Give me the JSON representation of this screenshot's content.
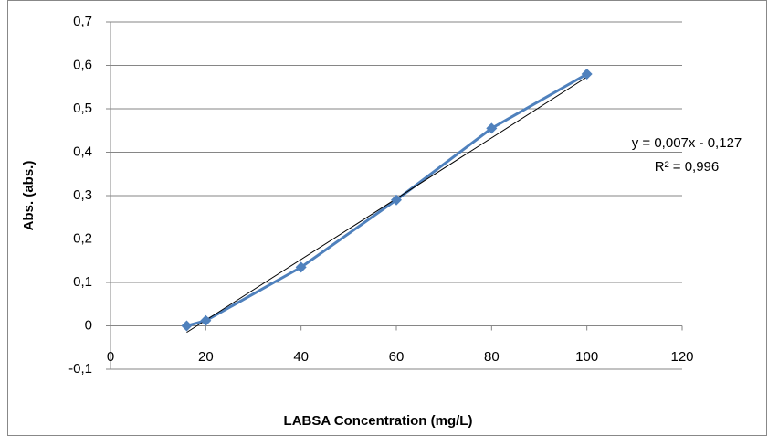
{
  "chart_data": {
    "type": "line",
    "x_label": "LABSA Concentration (mg/L)",
    "y_label": "Abs. (abs.)",
    "series": [
      {
        "color": "#4f81bd",
        "x": [
          16,
          20,
          40,
          60,
          80,
          100
        ],
        "values": [
          0,
          0.012,
          0.135,
          0.29,
          0.455,
          0.58
        ]
      }
    ],
    "trendline": {
      "slope": 0.007,
      "intercept": -0.127,
      "color": "#000000",
      "equation": "y = 0,007x - 0,127",
      "r_squared": "R² = 0,996"
    },
    "xlim": [
      0,
      120
    ],
    "xticks": [
      0,
      20,
      40,
      60,
      80,
      100,
      120
    ],
    "ylim": [
      -0.1,
      0.7
    ],
    "yticks": [
      {
        "value": -0.1,
        "label": "-0,1"
      },
      0,
      {
        "value": 0.1,
        "label": "0,1"
      },
      {
        "value": 0.2,
        "label": "0,2"
      },
      {
        "value": 0.3,
        "label": "0,3"
      },
      {
        "value": 0.4,
        "label": "0,4"
      },
      {
        "value": 0.5,
        "label": "0,5"
      },
      {
        "value": 0.6,
        "label": "0,6"
      },
      {
        "value": 0.7,
        "label": "0,7"
      }
    ],
    "grid": true
  }
}
